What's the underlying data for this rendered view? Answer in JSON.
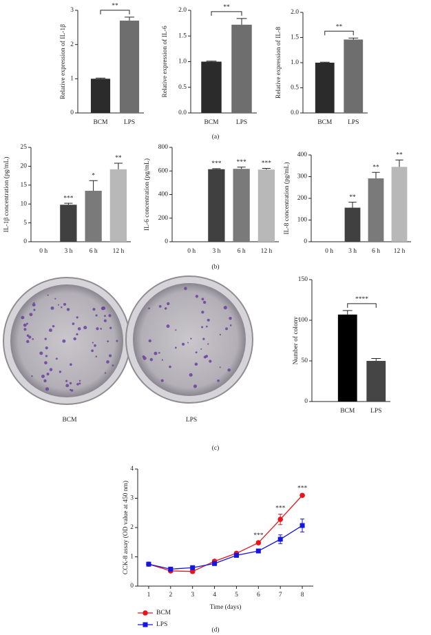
{
  "chart_data": [
    {
      "type": "bar",
      "ylabel": "Relative expression of IL-1β",
      "categories": [
        "BCM",
        "LPS"
      ],
      "values": [
        1.0,
        2.7
      ],
      "errors": [
        0.02,
        0.1
      ],
      "colors": [
        "#2b2b2b",
        "#6e6e6e"
      ],
      "ylim": [
        0,
        3
      ],
      "yticks": [
        0,
        1,
        2,
        3
      ],
      "significance": "**"
    },
    {
      "type": "bar",
      "ylabel": "Relative expression of IL-6",
      "categories": [
        "BCM",
        "LPS"
      ],
      "values": [
        1.0,
        1.72
      ],
      "errors": [
        0.01,
        0.12
      ],
      "colors": [
        "#2b2b2b",
        "#6e6e6e"
      ],
      "ylim": [
        0,
        2
      ],
      "yticks": [
        {
          "value": 0,
          "label": "0.0"
        },
        0.5,
        {
          "value": 1,
          "label": "1.0"
        },
        1.5,
        {
          "value": 2,
          "label": "2.0"
        }
      ],
      "significance": "**"
    },
    {
      "type": "bar",
      "ylabel": "Relative expression of IL-8",
      "categories": [
        "BCM",
        "LPS"
      ],
      "values": [
        1.0,
        1.46
      ],
      "errors": [
        0.01,
        0.03
      ],
      "colors": [
        "#2b2b2b",
        "#6e6e6e"
      ],
      "ylim": [
        0,
        2
      ],
      "yticks": [
        {
          "value": 0,
          "label": "0.0"
        },
        0.5,
        {
          "value": 1,
          "label": "1.0"
        },
        1.5,
        {
          "value": 2,
          "label": "2.0"
        }
      ],
      "significance": "**"
    },
    {
      "type": "bar",
      "ylabel": "IL-1β concentration (pg/mL)",
      "categories": [
        "0 h",
        "3 h",
        "6 h",
        "12 h"
      ],
      "values": [
        0,
        9.8,
        13.5,
        19.2
      ],
      "errors": [
        0,
        0.4,
        2.7,
        1.6
      ],
      "colors": [
        "#404040",
        "#404040",
        "#7a7a7a",
        "#b8b8b8"
      ],
      "ylim": [
        0,
        25
      ],
      "yticks": [
        0,
        5,
        10,
        15,
        20,
        25
      ],
      "annotations": [
        null,
        "***",
        "*",
        "**"
      ]
    },
    {
      "type": "bar",
      "ylabel": "IL-6 concentration (pg/mL)",
      "categories": [
        "0 h",
        "3 h",
        "6 h",
        "12 h"
      ],
      "values": [
        0,
        615,
        618,
        612
      ],
      "errors": [
        0,
        5,
        15,
        10
      ],
      "colors": [
        "#404040",
        "#404040",
        "#7a7a7a",
        "#b8b8b8"
      ],
      "ylim": [
        0,
        800
      ],
      "yticks": [
        0,
        200,
        400,
        600,
        800
      ],
      "annotations": [
        null,
        "***",
        "***",
        "***"
      ]
    },
    {
      "type": "bar",
      "ylabel": "IL-8 concentration (pg/mL)",
      "categories": [
        "0 h",
        "3 h",
        "6 h",
        "12 h"
      ],
      "values": [
        0,
        157,
        292,
        345
      ],
      "errors": [
        0,
        25,
        28,
        32
      ],
      "colors": [
        "#404040",
        "#404040",
        "#7a7a7a",
        "#b8b8b8"
      ],
      "ylim": [
        0,
        400
      ],
      "yticks": [
        0,
        100,
        200,
        300,
        400
      ],
      "annotations": [
        null,
        "**",
        "**",
        "**"
      ]
    },
    {
      "type": "bar",
      "ylabel": "Number of colony",
      "categories": [
        "BCM",
        "LPS"
      ],
      "values": [
        107,
        50
      ],
      "errors": [
        5,
        3
      ],
      "colors": [
        "#000000",
        "#454545"
      ],
      "ylim": [
        0,
        150
      ],
      "yticks": [
        0,
        50,
        100,
        150
      ],
      "significance": "****"
    },
    {
      "type": "line",
      "xlabel": "Time (days)",
      "ylabel": "CCK-8 assay (OD value at 450 nm)",
      "x": [
        1,
        2,
        3,
        4,
        5,
        6,
        7,
        8
      ],
      "xlim": [
        0.5,
        8.5
      ],
      "xticks": [
        1,
        2,
        3,
        4,
        5,
        6,
        7,
        8
      ],
      "ylim": [
        0,
        4
      ],
      "yticks": [
        0,
        1,
        2,
        3,
        4
      ],
      "legend": "below",
      "series": [
        {
          "name": "BCM",
          "color": "#e8141b",
          "marker": "circle",
          "values": [
            0.75,
            0.52,
            0.5,
            0.85,
            1.12,
            1.48,
            2.28,
            3.1
          ],
          "errors": [
            0.05,
            0.03,
            0.06,
            0.05,
            0.05,
            0.05,
            0.18,
            0.05
          ]
        },
        {
          "name": "LPS",
          "color": "#1515e0",
          "marker": "square",
          "values": [
            0.75,
            0.58,
            0.63,
            0.77,
            1.05,
            1.2,
            1.6,
            2.07
          ],
          "errors": [
            0.05,
            0.04,
            0.05,
            0.05,
            0.05,
            0.05,
            0.15,
            0.22
          ]
        }
      ],
      "annotations": [
        {
          "x": 6,
          "text": "***"
        },
        {
          "x": 7,
          "text": "***"
        },
        {
          "x": 8,
          "text": "***"
        }
      ]
    }
  ],
  "panel_labels": [
    "(a)",
    "(b)",
    "(c)",
    "(d)"
  ],
  "dish_labels": [
    "BCM",
    "LPS"
  ]
}
